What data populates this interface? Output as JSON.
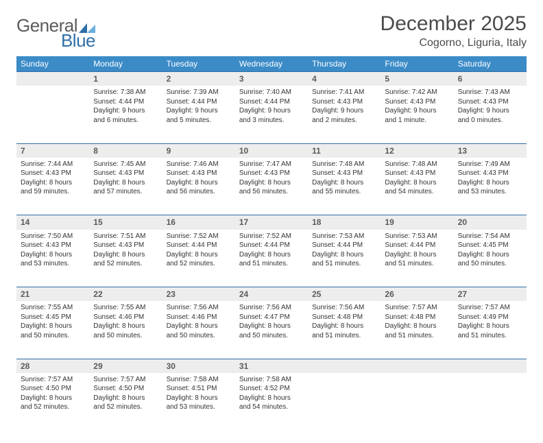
{
  "logo": {
    "text1": "General",
    "text2": "Blue"
  },
  "title": "December 2025",
  "location": "Cogorno, Liguria, Italy",
  "colors": {
    "header_bg": "#3b8bc7",
    "header_text": "#ffffff",
    "daynum_bg": "#ededed",
    "daynum_border": "#2f6fa8",
    "body_text": "#333333"
  },
  "weekdays": [
    "Sunday",
    "Monday",
    "Tuesday",
    "Wednesday",
    "Thursday",
    "Friday",
    "Saturday"
  ],
  "weeks": [
    [
      null,
      {
        "n": "1",
        "sr": "7:38 AM",
        "ss": "4:44 PM",
        "dl": "9 hours and 6 minutes."
      },
      {
        "n": "2",
        "sr": "7:39 AM",
        "ss": "4:44 PM",
        "dl": "9 hours and 5 minutes."
      },
      {
        "n": "3",
        "sr": "7:40 AM",
        "ss": "4:44 PM",
        "dl": "9 hours and 3 minutes."
      },
      {
        "n": "4",
        "sr": "7:41 AM",
        "ss": "4:43 PM",
        "dl": "9 hours and 2 minutes."
      },
      {
        "n": "5",
        "sr": "7:42 AM",
        "ss": "4:43 PM",
        "dl": "9 hours and 1 minute."
      },
      {
        "n": "6",
        "sr": "7:43 AM",
        "ss": "4:43 PM",
        "dl": "9 hours and 0 minutes."
      }
    ],
    [
      {
        "n": "7",
        "sr": "7:44 AM",
        "ss": "4:43 PM",
        "dl": "8 hours and 59 minutes."
      },
      {
        "n": "8",
        "sr": "7:45 AM",
        "ss": "4:43 PM",
        "dl": "8 hours and 57 minutes."
      },
      {
        "n": "9",
        "sr": "7:46 AM",
        "ss": "4:43 PM",
        "dl": "8 hours and 56 minutes."
      },
      {
        "n": "10",
        "sr": "7:47 AM",
        "ss": "4:43 PM",
        "dl": "8 hours and 56 minutes."
      },
      {
        "n": "11",
        "sr": "7:48 AM",
        "ss": "4:43 PM",
        "dl": "8 hours and 55 minutes."
      },
      {
        "n": "12",
        "sr": "7:48 AM",
        "ss": "4:43 PM",
        "dl": "8 hours and 54 minutes."
      },
      {
        "n": "13",
        "sr": "7:49 AM",
        "ss": "4:43 PM",
        "dl": "8 hours and 53 minutes."
      }
    ],
    [
      {
        "n": "14",
        "sr": "7:50 AM",
        "ss": "4:43 PM",
        "dl": "8 hours and 53 minutes."
      },
      {
        "n": "15",
        "sr": "7:51 AM",
        "ss": "4:43 PM",
        "dl": "8 hours and 52 minutes."
      },
      {
        "n": "16",
        "sr": "7:52 AM",
        "ss": "4:44 PM",
        "dl": "8 hours and 52 minutes."
      },
      {
        "n": "17",
        "sr": "7:52 AM",
        "ss": "4:44 PM",
        "dl": "8 hours and 51 minutes."
      },
      {
        "n": "18",
        "sr": "7:53 AM",
        "ss": "4:44 PM",
        "dl": "8 hours and 51 minutes."
      },
      {
        "n": "19",
        "sr": "7:53 AM",
        "ss": "4:44 PM",
        "dl": "8 hours and 51 minutes."
      },
      {
        "n": "20",
        "sr": "7:54 AM",
        "ss": "4:45 PM",
        "dl": "8 hours and 50 minutes."
      }
    ],
    [
      {
        "n": "21",
        "sr": "7:55 AM",
        "ss": "4:45 PM",
        "dl": "8 hours and 50 minutes."
      },
      {
        "n": "22",
        "sr": "7:55 AM",
        "ss": "4:46 PM",
        "dl": "8 hours and 50 minutes."
      },
      {
        "n": "23",
        "sr": "7:56 AM",
        "ss": "4:46 PM",
        "dl": "8 hours and 50 minutes."
      },
      {
        "n": "24",
        "sr": "7:56 AM",
        "ss": "4:47 PM",
        "dl": "8 hours and 50 minutes."
      },
      {
        "n": "25",
        "sr": "7:56 AM",
        "ss": "4:48 PM",
        "dl": "8 hours and 51 minutes."
      },
      {
        "n": "26",
        "sr": "7:57 AM",
        "ss": "4:48 PM",
        "dl": "8 hours and 51 minutes."
      },
      {
        "n": "27",
        "sr": "7:57 AM",
        "ss": "4:49 PM",
        "dl": "8 hours and 51 minutes."
      }
    ],
    [
      {
        "n": "28",
        "sr": "7:57 AM",
        "ss": "4:50 PM",
        "dl": "8 hours and 52 minutes."
      },
      {
        "n": "29",
        "sr": "7:57 AM",
        "ss": "4:50 PM",
        "dl": "8 hours and 52 minutes."
      },
      {
        "n": "30",
        "sr": "7:58 AM",
        "ss": "4:51 PM",
        "dl": "8 hours and 53 minutes."
      },
      {
        "n": "31",
        "sr": "7:58 AM",
        "ss": "4:52 PM",
        "dl": "8 hours and 54 minutes."
      },
      null,
      null,
      null
    ]
  ],
  "labels": {
    "sunrise": "Sunrise:",
    "sunset": "Sunset:",
    "daylight": "Daylight:"
  }
}
